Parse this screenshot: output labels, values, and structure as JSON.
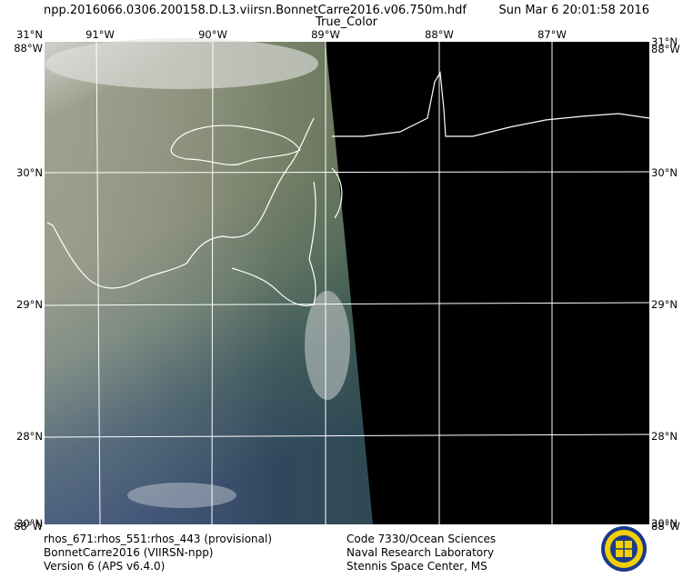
{
  "header": {
    "file": "npp.2016066.0306.200158.D.L3.viirsn.BonnetCarre2016.v06.750m.hdf",
    "date": "Sun Mar  6 20:01:58 2016",
    "product": "True_Color"
  },
  "grid": {
    "corner_top_lat": "31°N",
    "corner_top_lon": "88°W",
    "corner_bottom_lat": "30°N",
    "corner_bottom_lon": "88°W",
    "lon_labels": [
      "91°W",
      "90°W",
      "89°W",
      "88°W",
      "87°W"
    ],
    "lat_labels": [
      "30°N",
      "29°N",
      "28°N"
    ]
  },
  "footer": {
    "left": [
      "rhos_671:rhos_551:rhos_443 (provisional)",
      "BonnetCarre2016 (VIIRSN-npp)",
      "Version 6 (APS v6.4.0)"
    ],
    "right": [
      "Code 7330/Ocean Sciences",
      "Naval Research Laboratory",
      "Stennis Space Center, MS"
    ]
  }
}
